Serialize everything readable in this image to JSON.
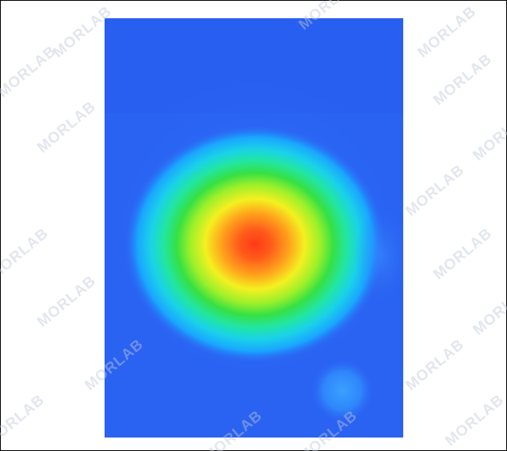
{
  "watermark": {
    "text": "MORLAB"
  },
  "heatmap": {
    "colormap": [
      "#2a5cff",
      "#1f8fff",
      "#18c8f0",
      "#20e8a8",
      "#30e040",
      "#c8f020",
      "#ffe020",
      "#ff9a1a",
      "#ff4a1a"
    ],
    "background_color": "#2a6cf5",
    "hotspot_level": "peak",
    "secondary_hotspot_level": "faint"
  }
}
